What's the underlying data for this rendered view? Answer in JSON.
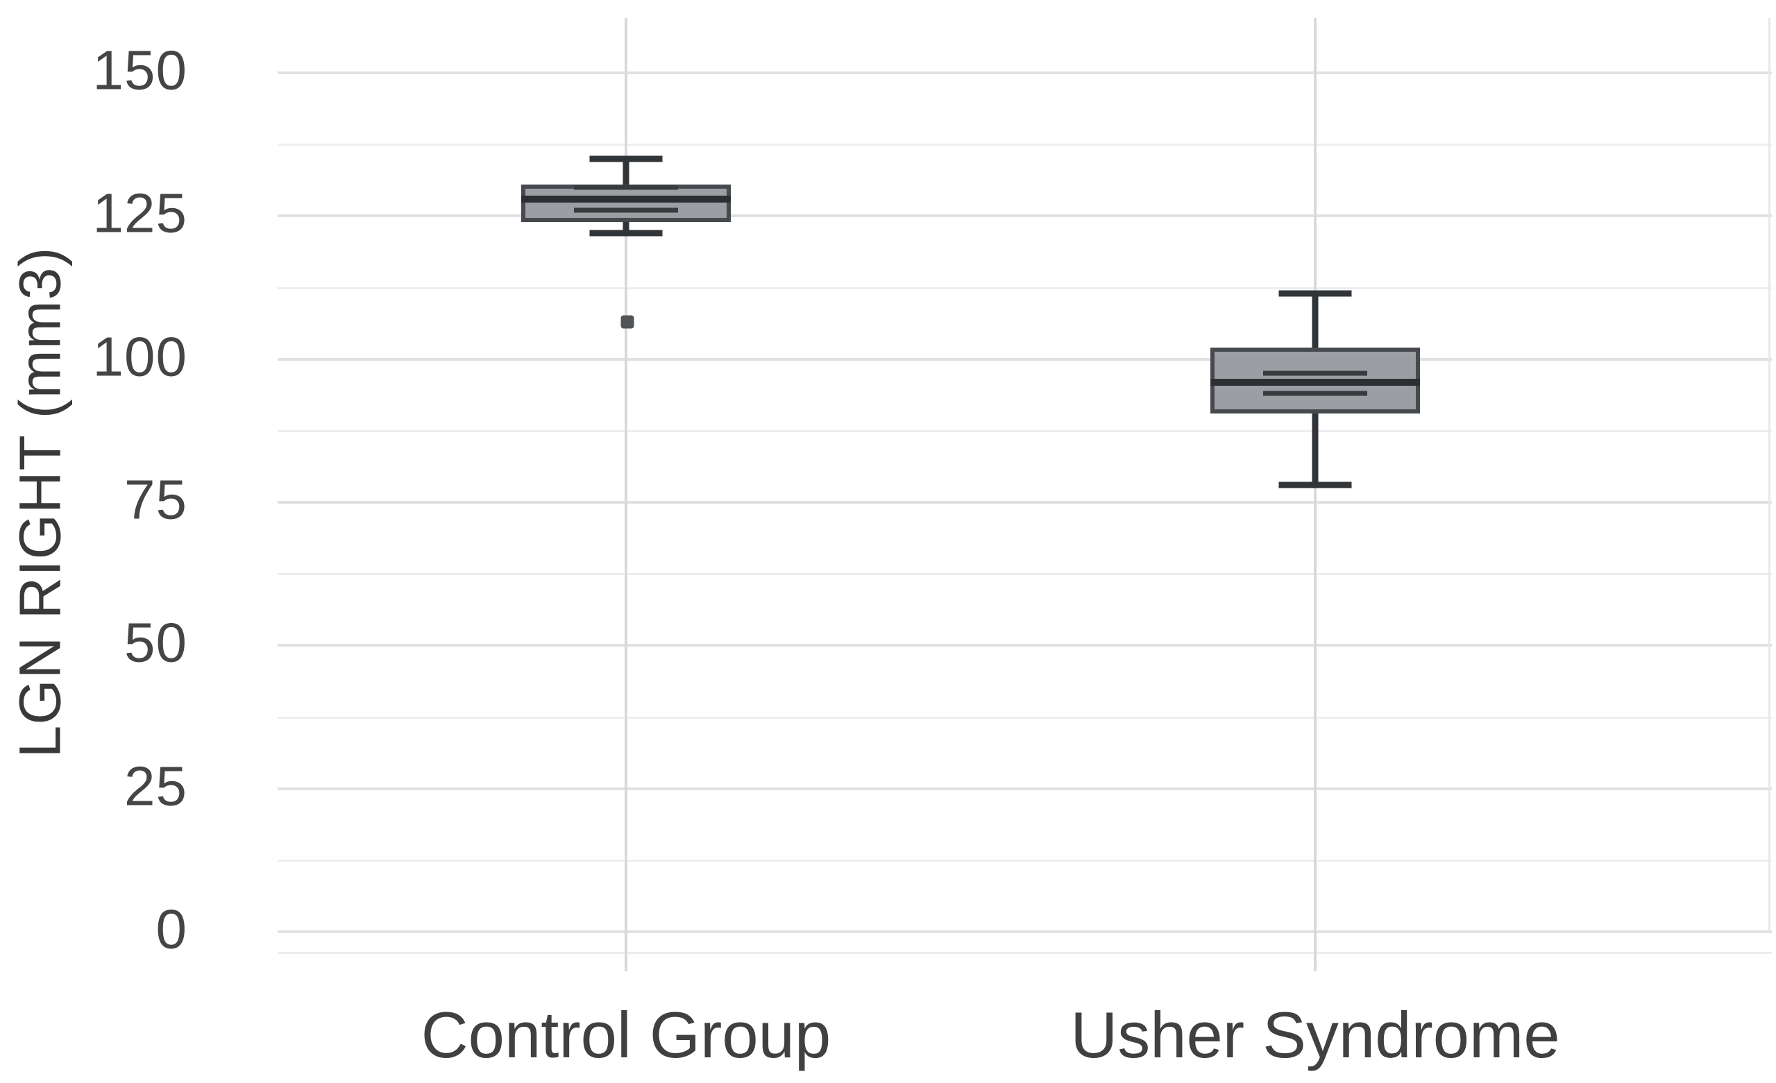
{
  "chart_data": {
    "type": "boxplot",
    "title": "",
    "xlabel": "",
    "ylabel": "LGN RIGHT (mm3)",
    "categories": [
      "Control Group",
      "Usher Syndrome"
    ],
    "y_axis": {
      "ticks": [
        0,
        25,
        50,
        75,
        100,
        125,
        150
      ],
      "tick_labels": [
        "0",
        "25",
        "50",
        "75",
        "100",
        "125",
        "150"
      ],
      "range": [
        0,
        157
      ],
      "minor_gridline_step": 12.5,
      "grid": "on"
    },
    "series": [
      {
        "name": "Control Group",
        "whisker_low": 122,
        "q1": 124,
        "median": 128,
        "q3": 130.5,
        "whisker_high": 135,
        "ci_lines": [
          126,
          130
        ],
        "outliers": [
          106.5
        ]
      },
      {
        "name": "Usher Syndrome",
        "whisker_low": 78,
        "q1": 90.5,
        "median": 96,
        "q3": 102,
        "whisker_high": 111.5,
        "ci_lines": [
          94,
          97.5
        ],
        "outliers": []
      }
    ],
    "legend": "none",
    "colors": {
      "background": "#ffffff",
      "box_fill": "#9b9ea3",
      "box_border": "#46494d",
      "median_line": "#2c2f32",
      "whisker": "#323538",
      "major_gridline": "#e1e1e5",
      "minor_gridline": "#eeeef1",
      "category_gridline": "#d9d9dc",
      "tick_text": "#434547",
      "label_text": "#3e4042"
    }
  }
}
